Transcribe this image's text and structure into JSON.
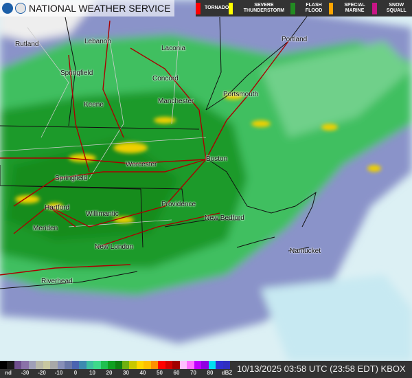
{
  "header": {
    "title": "NATIONAL WEATHER SERVICE",
    "warnings": [
      {
        "label": "TORNADO",
        "color": "#ff0000"
      },
      {
        "label": "SEVERE THUNDERSTORM",
        "color": "#ffff00"
      },
      {
        "label": "FLASH FLOOD",
        "color": "#228b22"
      },
      {
        "label": "SPECIAL MARINE",
        "color": "#ffa500"
      },
      {
        "label": "SNOW SQUALL",
        "color": "#c71585"
      }
    ]
  },
  "cities": [
    "Rutland",
    "Lebanon",
    "Laconia",
    "Portland",
    "Springfield",
    "Concord",
    "Portsmouth",
    "Keene",
    "Manchester",
    "Worcester",
    "Boston",
    "Springfield",
    "Providence",
    "Hartford",
    "Willimantic",
    "New Bedford",
    "Meriden",
    "New London",
    "Nantucket",
    "Riverhead"
  ],
  "scale": {
    "ticks": [
      "nd",
      "-30",
      "-20",
      "-10",
      "0",
      "10",
      "20",
      "30",
      "40",
      "50",
      "60",
      "70",
      "80",
      "dBZ"
    ],
    "colors": [
      "#000000",
      "#1a1a1a",
      "#6e4f8e",
      "#8a72a8",
      "#9f9fb8",
      "#b8b8a8",
      "#c8c8a0",
      "#a8a8a8",
      "#8890b8",
      "#6a78a8",
      "#4a64b0",
      "#3e8ab0",
      "#3ec0a0",
      "#3ed98a",
      "#20c050",
      "#10a020",
      "#108010",
      "#70b010",
      "#c8c800",
      "#ffd700",
      "#ffc000",
      "#ff9000",
      "#ff0000",
      "#d00000",
      "#a00000",
      "#ffc0ff",
      "#ff70ff",
      "#c000ff",
      "#9000e0",
      "#00e0f0",
      "#3030d0",
      "#3030c0"
    ]
  },
  "timestamp": "10/13/2025 03:58 UTC (23:58 EDT) KBOX"
}
